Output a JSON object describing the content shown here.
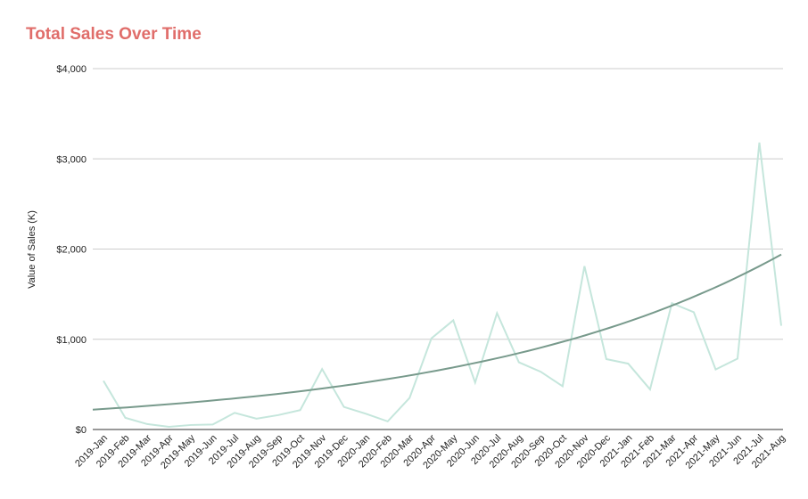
{
  "chart_data": {
    "type": "line",
    "title": "Total Sales Over Time",
    "xlabel": "",
    "ylabel": "Value of Sales (K)",
    "ylim": [
      0,
      4000
    ],
    "yticks": [
      "$0",
      "$1,000",
      "$2,000",
      "$3,000",
      "$4,000"
    ],
    "ytick_values": [
      0,
      1000,
      2000,
      3000,
      4000
    ],
    "grid": true,
    "categories": [
      "2019-Jan",
      "2019-Feb",
      "2019-Mar",
      "2019-Apr",
      "2019-May",
      "2019-Jun",
      "2019-Jul",
      "2019-Aug",
      "2019-Sep",
      "2019-Oct",
      "2019-Nov",
      "2019-Dec",
      "2020-Jan",
      "2020-Feb",
      "2020-Mar",
      "2020-Apr",
      "2020-May",
      "2020-Jun",
      "2020-Jul",
      "2020-Aug",
      "2020-Sep",
      "2020-Oct",
      "2020-Nov",
      "2020-Dec",
      "2021-Jan",
      "2021-Feb",
      "2021-Mar",
      "2021-Apr",
      "2021-May",
      "2021-Jun",
      "2021-Jul",
      "2021-Aug"
    ],
    "series": [
      {
        "color": "#c5e6dc",
        "values": [
          540,
          130,
          60,
          30,
          50,
          55,
          185,
          120,
          160,
          215,
          670,
          250,
          175,
          90,
          350,
          1010,
          1210,
          520,
          1290,
          745,
          640,
          480,
          1810,
          780,
          730,
          445,
          1400,
          1300,
          665,
          785,
          3180,
          1150
        ]
      }
    ],
    "trendline": {
      "type": "exponential",
      "color": "#789a8c",
      "start_value": 220,
      "end_value": 1940
    }
  }
}
